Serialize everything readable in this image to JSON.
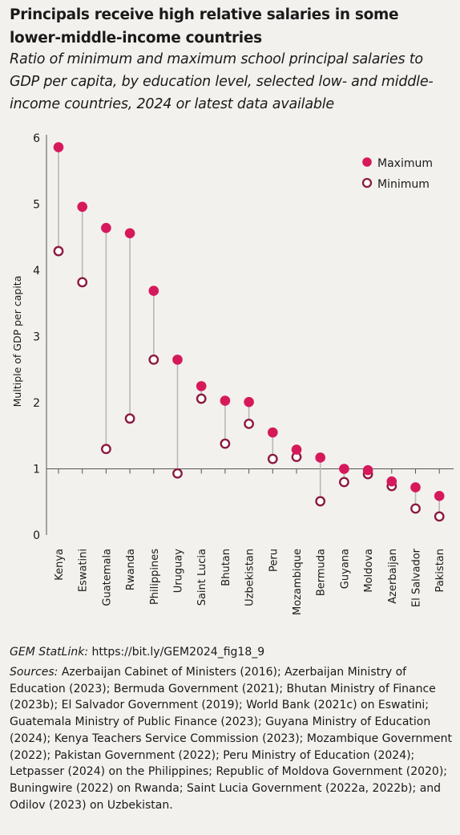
{
  "title": "Principals receive high relative salaries in some lower-middle-income countries",
  "subtitle": "Ratio of minimum and maximum school principal salaries to GDP per capita, by education level, selected low- and middle-income countries, 2024 or latest data available",
  "statlink": {
    "label": "GEM StatLink:",
    "url": "https://bit.ly/GEM2024_fig18_9"
  },
  "sources": {
    "label": "Sources:",
    "text": "Azerbaijan Cabinet of Ministers (2016); Azerbaijan Ministry of Education (2023); Bermuda Government (2021); Bhutan Ministry of Finance (2023b); El Salvador Government (2019); World Bank (2021c) on Eswatini; Guatemala Ministry of Public Finance (2023); Guyana Ministry of Education (2024); Kenya Teachers Service Commission (2023); Mozambique Government (2022); Pakistan Government (2022); Peru Ministry of Education (2024); Letpasser (2024) on the Philippines; Republic of Moldova Government (2020); Buningwire (2022) on Rwanda; Saint Lucia Government (2022a, 2022b); and Odilov (2023) on Uzbekistan."
  },
  "chart_data": {
    "type": "dumbbell",
    "ylabel": "Multiple of GDP per capita",
    "ylim": [
      0,
      6
    ],
    "yticks": [
      0,
      1,
      2,
      3,
      4,
      5,
      6
    ],
    "grid": false,
    "legend_position": "top-right",
    "categories": [
      "Kenya",
      "Eswatini",
      "Guatemala",
      "Rwanda",
      "Philippines",
      "Uruguay",
      "Saint Lucia",
      "Bhutan",
      "Uzbekistan",
      "Peru",
      "Mozambique",
      "Bermuda",
      "Guyana",
      "Moldova",
      "Azerbaijan",
      "El Salvador",
      "Pakistan"
    ],
    "series": [
      {
        "name": "Maximum",
        "marker": "filled",
        "color": "#d6195a",
        "values": [
          5.86,
          4.96,
          4.64,
          4.56,
          3.69,
          2.65,
          2.25,
          2.03,
          2.01,
          1.55,
          1.29,
          1.17,
          1.0,
          0.98,
          0.81,
          0.72,
          0.59
        ]
      },
      {
        "name": "Minimum",
        "marker": "hollow",
        "color": "#8b1a3f",
        "values": [
          4.29,
          3.82,
          1.3,
          1.76,
          2.65,
          0.93,
          2.06,
          1.38,
          1.68,
          1.15,
          1.18,
          0.51,
          0.8,
          0.92,
          0.74,
          0.4,
          0.28
        ]
      }
    ],
    "connector_color": "#b8b8b8",
    "axis_color": "#555555"
  }
}
